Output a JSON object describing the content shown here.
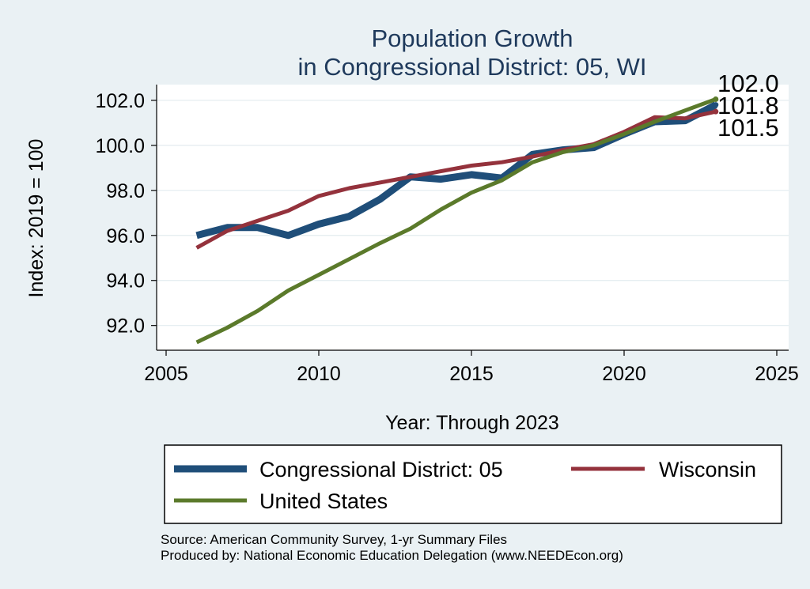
{
  "chart_data": {
    "type": "line",
    "title": "Population Growth",
    "subtitle": "in Congressional District: 05, WI",
    "xlabel": "Year: Through 2023",
    "ylabel": "Index: 2019 = 100",
    "xlim": [
      2005,
      2025
    ],
    "ylim": [
      90.9,
      102.7
    ],
    "xticks": [
      2005,
      2010,
      2015,
      2020,
      2025
    ],
    "yticks": [
      92.0,
      94.0,
      96.0,
      98.0,
      100.0,
      102.0
    ],
    "ytick_labels": [
      "92.0",
      "94.0",
      "96.0",
      "98.0",
      "100.0",
      "102.0"
    ],
    "grid": true,
    "legend_position": "bottom",
    "x": [
      2006,
      2007,
      2008,
      2009,
      2010,
      2011,
      2012,
      2013,
      2014,
      2015,
      2016,
      2017,
      2018,
      2019,
      2020,
      2021,
      2022,
      2023
    ],
    "series": [
      {
        "name": "Congressional District: 05",
        "color": "#1f4e79",
        "width": 9,
        "values": [
          96.0,
          96.35,
          96.35,
          96.0,
          96.5,
          96.85,
          97.6,
          98.6,
          98.5,
          98.7,
          98.55,
          99.6,
          99.8,
          99.9,
          100.5,
          101.05,
          101.1,
          101.8
        ],
        "end_label": "101.8"
      },
      {
        "name": "Wisconsin",
        "color": "#94323c",
        "width": 5,
        "values": [
          95.45,
          96.2,
          96.65,
          97.1,
          97.75,
          98.1,
          98.35,
          98.6,
          98.85,
          99.1,
          99.25,
          99.5,
          99.8,
          100.05,
          100.6,
          101.25,
          101.2,
          101.5
        ],
        "end_label": "101.5"
      },
      {
        "name": "United States",
        "color": "#5b7a2b",
        "width": 5,
        "values": [
          91.25,
          91.9,
          92.65,
          93.55,
          94.25,
          94.95,
          95.65,
          96.3,
          97.15,
          97.9,
          98.45,
          99.25,
          99.7,
          100.0,
          100.5,
          101.05,
          101.55,
          102.05
        ],
        "end_label": "102.0"
      }
    ]
  },
  "source_line1": "Source: American Community Survey, 1-yr Summary Files",
  "source_line2": "Produced by: National Economic Education Delegation (www.NEEDEcon.org)"
}
